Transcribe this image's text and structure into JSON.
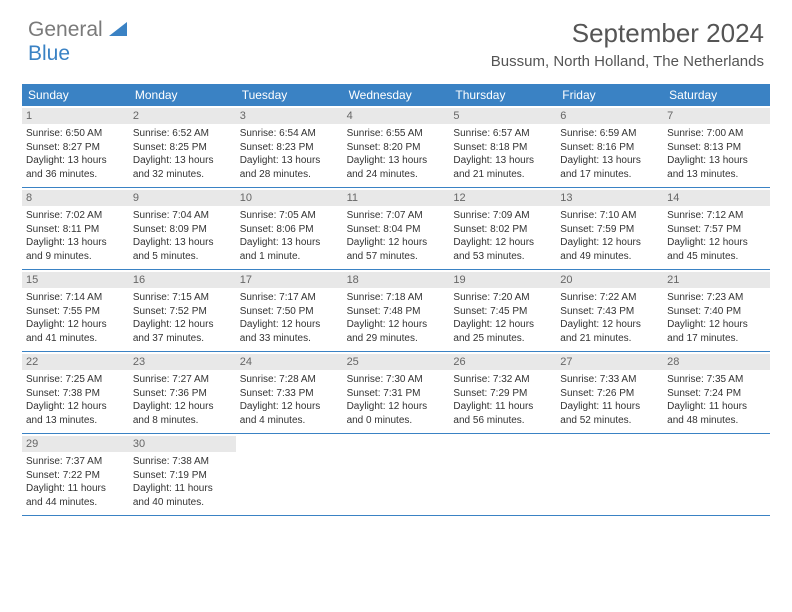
{
  "brand": {
    "text1": "General",
    "text2": "Blue"
  },
  "title": "September 2024",
  "location": "Bussum, North Holland, The Netherlands",
  "weekdays": [
    "Sunday",
    "Monday",
    "Tuesday",
    "Wednesday",
    "Thursday",
    "Friday",
    "Saturday"
  ],
  "colors": {
    "header_blue": "#3a82c4",
    "band_gray": "#e8e8e8",
    "text_dark": "#333333",
    "text_muted": "#555555",
    "logo_gray": "#7a7a7a"
  },
  "weeks": [
    [
      {
        "n": "1",
        "sr": "6:50 AM",
        "ss": "8:27 PM",
        "dl1": "Daylight: 13 hours",
        "dl2": "and 36 minutes."
      },
      {
        "n": "2",
        "sr": "6:52 AM",
        "ss": "8:25 PM",
        "dl1": "Daylight: 13 hours",
        "dl2": "and 32 minutes."
      },
      {
        "n": "3",
        "sr": "6:54 AM",
        "ss": "8:23 PM",
        "dl1": "Daylight: 13 hours",
        "dl2": "and 28 minutes."
      },
      {
        "n": "4",
        "sr": "6:55 AM",
        "ss": "8:20 PM",
        "dl1": "Daylight: 13 hours",
        "dl2": "and 24 minutes."
      },
      {
        "n": "5",
        "sr": "6:57 AM",
        "ss": "8:18 PM",
        "dl1": "Daylight: 13 hours",
        "dl2": "and 21 minutes."
      },
      {
        "n": "6",
        "sr": "6:59 AM",
        "ss": "8:16 PM",
        "dl1": "Daylight: 13 hours",
        "dl2": "and 17 minutes."
      },
      {
        "n": "7",
        "sr": "7:00 AM",
        "ss": "8:13 PM",
        "dl1": "Daylight: 13 hours",
        "dl2": "and 13 minutes."
      }
    ],
    [
      {
        "n": "8",
        "sr": "7:02 AM",
        "ss": "8:11 PM",
        "dl1": "Daylight: 13 hours",
        "dl2": "and 9 minutes."
      },
      {
        "n": "9",
        "sr": "7:04 AM",
        "ss": "8:09 PM",
        "dl1": "Daylight: 13 hours",
        "dl2": "and 5 minutes."
      },
      {
        "n": "10",
        "sr": "7:05 AM",
        "ss": "8:06 PM",
        "dl1": "Daylight: 13 hours",
        "dl2": "and 1 minute."
      },
      {
        "n": "11",
        "sr": "7:07 AM",
        "ss": "8:04 PM",
        "dl1": "Daylight: 12 hours",
        "dl2": "and 57 minutes."
      },
      {
        "n": "12",
        "sr": "7:09 AM",
        "ss": "8:02 PM",
        "dl1": "Daylight: 12 hours",
        "dl2": "and 53 minutes."
      },
      {
        "n": "13",
        "sr": "7:10 AM",
        "ss": "7:59 PM",
        "dl1": "Daylight: 12 hours",
        "dl2": "and 49 minutes."
      },
      {
        "n": "14",
        "sr": "7:12 AM",
        "ss": "7:57 PM",
        "dl1": "Daylight: 12 hours",
        "dl2": "and 45 minutes."
      }
    ],
    [
      {
        "n": "15",
        "sr": "7:14 AM",
        "ss": "7:55 PM",
        "dl1": "Daylight: 12 hours",
        "dl2": "and 41 minutes."
      },
      {
        "n": "16",
        "sr": "7:15 AM",
        "ss": "7:52 PM",
        "dl1": "Daylight: 12 hours",
        "dl2": "and 37 minutes."
      },
      {
        "n": "17",
        "sr": "7:17 AM",
        "ss": "7:50 PM",
        "dl1": "Daylight: 12 hours",
        "dl2": "and 33 minutes."
      },
      {
        "n": "18",
        "sr": "7:18 AM",
        "ss": "7:48 PM",
        "dl1": "Daylight: 12 hours",
        "dl2": "and 29 minutes."
      },
      {
        "n": "19",
        "sr": "7:20 AM",
        "ss": "7:45 PM",
        "dl1": "Daylight: 12 hours",
        "dl2": "and 25 minutes."
      },
      {
        "n": "20",
        "sr": "7:22 AM",
        "ss": "7:43 PM",
        "dl1": "Daylight: 12 hours",
        "dl2": "and 21 minutes."
      },
      {
        "n": "21",
        "sr": "7:23 AM",
        "ss": "7:40 PM",
        "dl1": "Daylight: 12 hours",
        "dl2": "and 17 minutes."
      }
    ],
    [
      {
        "n": "22",
        "sr": "7:25 AM",
        "ss": "7:38 PM",
        "dl1": "Daylight: 12 hours",
        "dl2": "and 13 minutes."
      },
      {
        "n": "23",
        "sr": "7:27 AM",
        "ss": "7:36 PM",
        "dl1": "Daylight: 12 hours",
        "dl2": "and 8 minutes."
      },
      {
        "n": "24",
        "sr": "7:28 AM",
        "ss": "7:33 PM",
        "dl1": "Daylight: 12 hours",
        "dl2": "and 4 minutes."
      },
      {
        "n": "25",
        "sr": "7:30 AM",
        "ss": "7:31 PM",
        "dl1": "Daylight: 12 hours",
        "dl2": "and 0 minutes."
      },
      {
        "n": "26",
        "sr": "7:32 AM",
        "ss": "7:29 PM",
        "dl1": "Daylight: 11 hours",
        "dl2": "and 56 minutes."
      },
      {
        "n": "27",
        "sr": "7:33 AM",
        "ss": "7:26 PM",
        "dl1": "Daylight: 11 hours",
        "dl2": "and 52 minutes."
      },
      {
        "n": "28",
        "sr": "7:35 AM",
        "ss": "7:24 PM",
        "dl1": "Daylight: 11 hours",
        "dl2": "and 48 minutes."
      }
    ],
    [
      {
        "n": "29",
        "sr": "7:37 AM",
        "ss": "7:22 PM",
        "dl1": "Daylight: 11 hours",
        "dl2": "and 44 minutes."
      },
      {
        "n": "30",
        "sr": "7:38 AM",
        "ss": "7:19 PM",
        "dl1": "Daylight: 11 hours",
        "dl2": "and 40 minutes."
      },
      null,
      null,
      null,
      null,
      null
    ]
  ],
  "labels": {
    "sunrise_prefix": "Sunrise: ",
    "sunset_prefix": "Sunset: "
  }
}
